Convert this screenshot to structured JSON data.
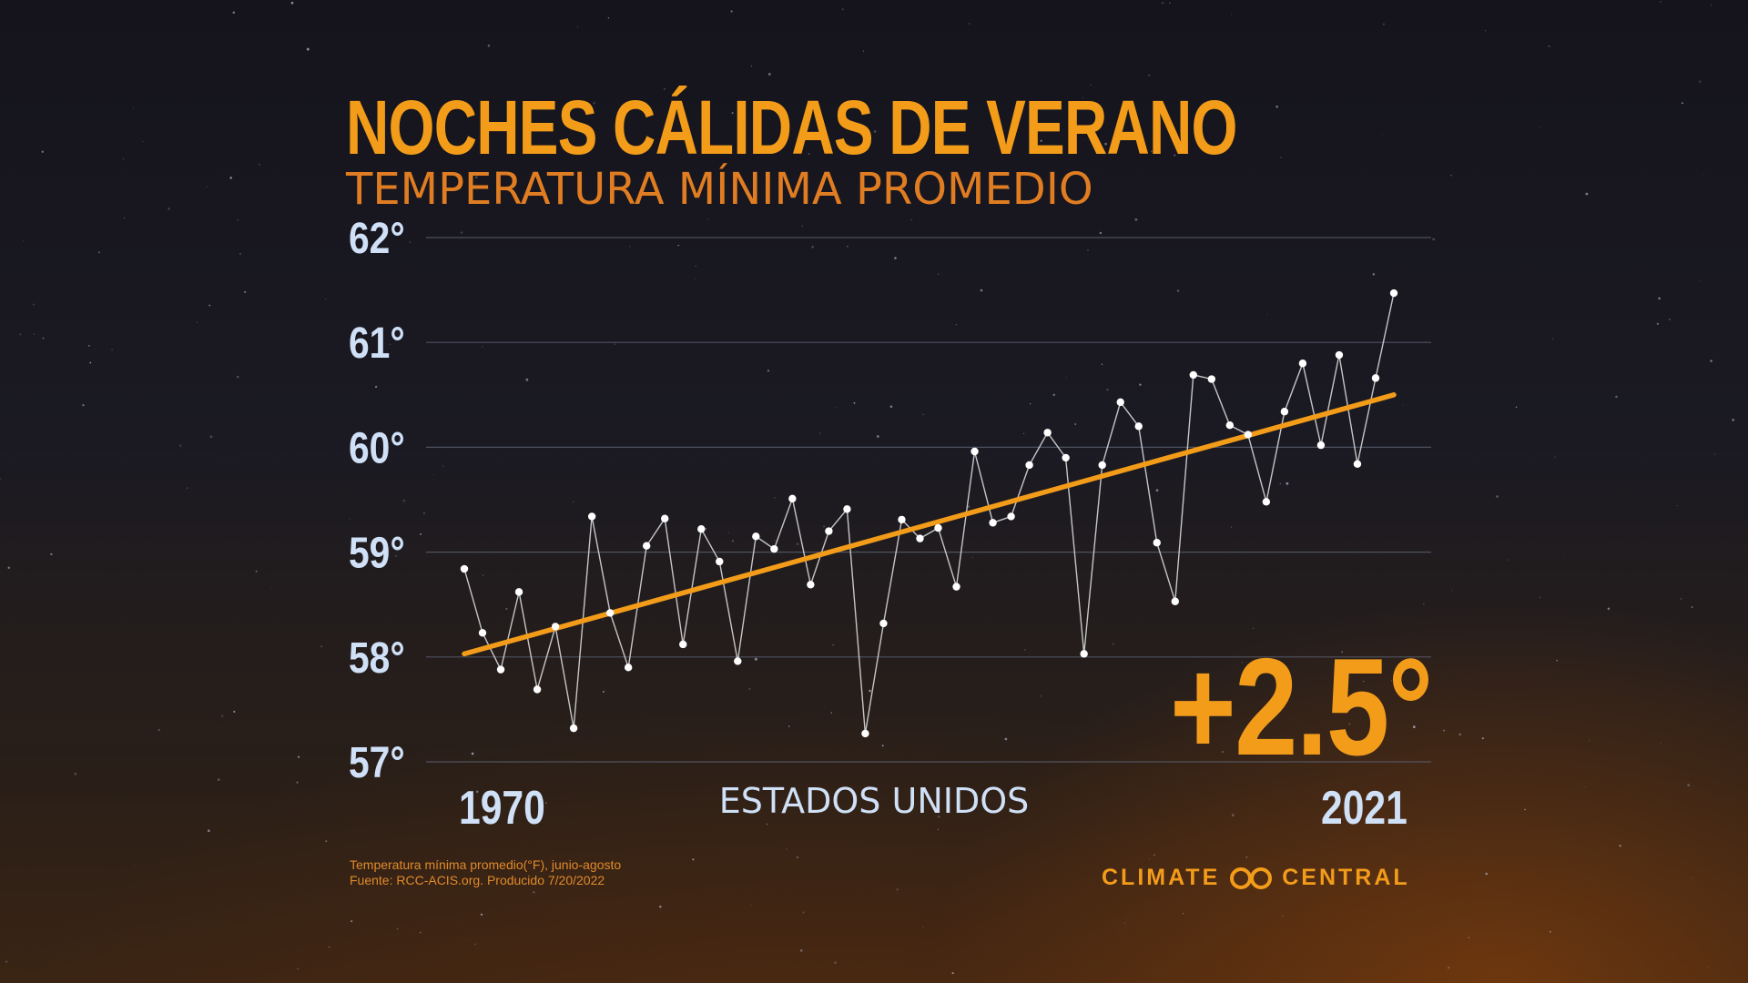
{
  "title": "NOCHES CÁLIDAS DE VERANO",
  "subtitle": "TEMPERATURA MÍNIMA PROMEDIO",
  "region": "ESTADOS UNIDOS",
  "change": "+2.5°",
  "source_lines": [
    "Temperatura mínima promedio(°F), junio-agosto",
    "Fuente: RCC-ACIS.org. Producido 7/20/2022"
  ],
  "logo": {
    "left": "CLIMATE",
    "right": "CENTRAL"
  },
  "colors": {
    "accent": "#f39c1a",
    "axis_text": "#cfe0f7",
    "points": "#ffffff",
    "grid": "#5a6070"
  },
  "chart_data": {
    "type": "line",
    "title": "NOCHES CÁLIDAS DE VERANO",
    "subtitle": "TEMPERATURA MÍNIMA PROMEDIO",
    "xlabel": "ESTADOS UNIDOS",
    "x_tick_labels": [
      "1970",
      "2021"
    ],
    "ylim": [
      57,
      62
    ],
    "y_ticks": [
      62,
      61,
      60,
      59,
      58,
      57
    ],
    "y_tick_labels": [
      "62°",
      "61°",
      "60°",
      "59°",
      "58°",
      "57°"
    ],
    "grid": true,
    "x": [
      1970,
      1971,
      1972,
      1973,
      1974,
      1975,
      1976,
      1977,
      1978,
      1979,
      1980,
      1981,
      1982,
      1983,
      1984,
      1985,
      1986,
      1987,
      1988,
      1989,
      1990,
      1991,
      1992,
      1993,
      1994,
      1995,
      1996,
      1997,
      1998,
      1999,
      2000,
      2001,
      2002,
      2003,
      2004,
      2005,
      2006,
      2007,
      2008,
      2009,
      2010,
      2011,
      2012,
      2013,
      2014,
      2015,
      2016,
      2017,
      2018,
      2019,
      2020,
      2021
    ],
    "series": [
      {
        "values": [
          58.84,
          58.23,
          57.88,
          58.62,
          57.69,
          58.29,
          57.32,
          59.34,
          58.42,
          57.9,
          59.06,
          59.32,
          58.12,
          59.22,
          58.91,
          57.96,
          59.15,
          59.03,
          59.51,
          58.69,
          59.2,
          59.41,
          57.27,
          58.32,
          59.31,
          59.13,
          59.23,
          58.67,
          59.96,
          59.28,
          59.34,
          59.83,
          60.14,
          59.9,
          58.03,
          59.83,
          60.43,
          60.2,
          59.09,
          58.53,
          60.69,
          60.65,
          60.21,
          60.12,
          59.48,
          60.34,
          60.8,
          60.02,
          60.88,
          59.84,
          60.66,
          61.47
        ]
      }
    ],
    "trend": {
      "start": 58.03,
      "end": 60.5
    },
    "annotation": "+2.5°"
  }
}
